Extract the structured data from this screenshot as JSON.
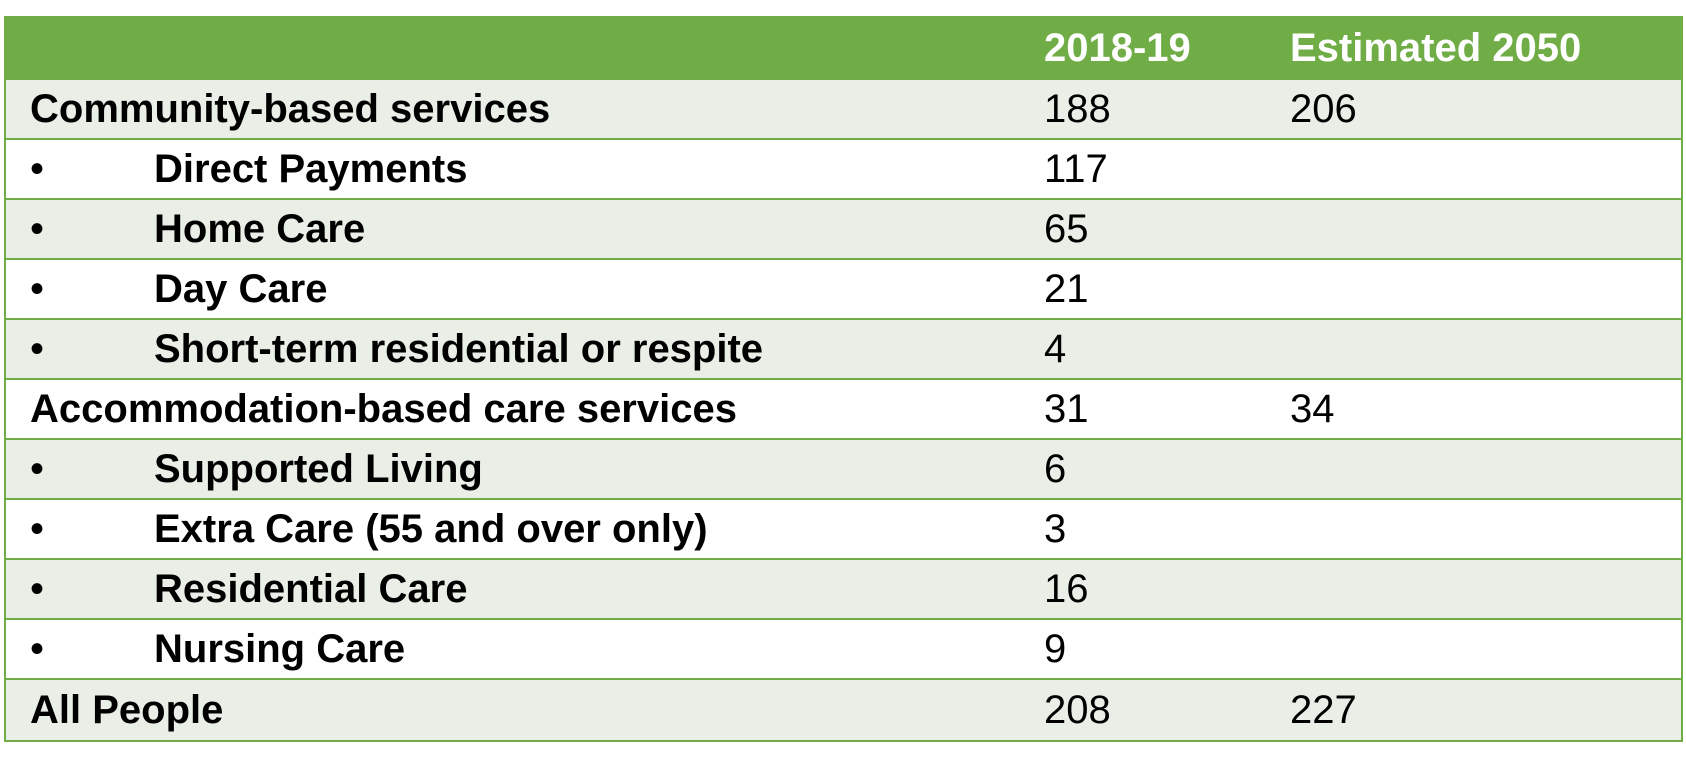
{
  "table": {
    "header": {
      "col_1": "",
      "col_2": "2018-19",
      "col_3": "Estimated 2050"
    },
    "bullet_glyph": "•",
    "rows": [
      {
        "label": "Community-based services",
        "v2018": "188",
        "v2050": "206"
      },
      {
        "label": "Direct Payments",
        "v2018": "117",
        "v2050": ""
      },
      {
        "label": "Home Care",
        "v2018": "65",
        "v2050": ""
      },
      {
        "label": "Day Care",
        "v2018": "21",
        "v2050": ""
      },
      {
        "label": "Short-term residential or respite",
        "v2018": "4",
        "v2050": ""
      },
      {
        "label": "Accommodation-based care services",
        "v2018": "31",
        "v2050": "34"
      },
      {
        "label": "Supported Living",
        "v2018": "6",
        "v2050": ""
      },
      {
        "label": "Extra Care (55 and over only)",
        "v2018": "3",
        "v2050": ""
      },
      {
        "label": "Residential Care",
        "v2018": "16",
        "v2050": ""
      },
      {
        "label": "Nursing Care",
        "v2018": "9",
        "v2050": ""
      },
      {
        "label": "All People",
        "v2018": "208",
        "v2050": "227"
      }
    ]
  },
  "colors": {
    "header_bg": "#70ad47",
    "header_text": "#ffffff",
    "row_shade": "#e9efe6",
    "border": "#70ad47"
  }
}
